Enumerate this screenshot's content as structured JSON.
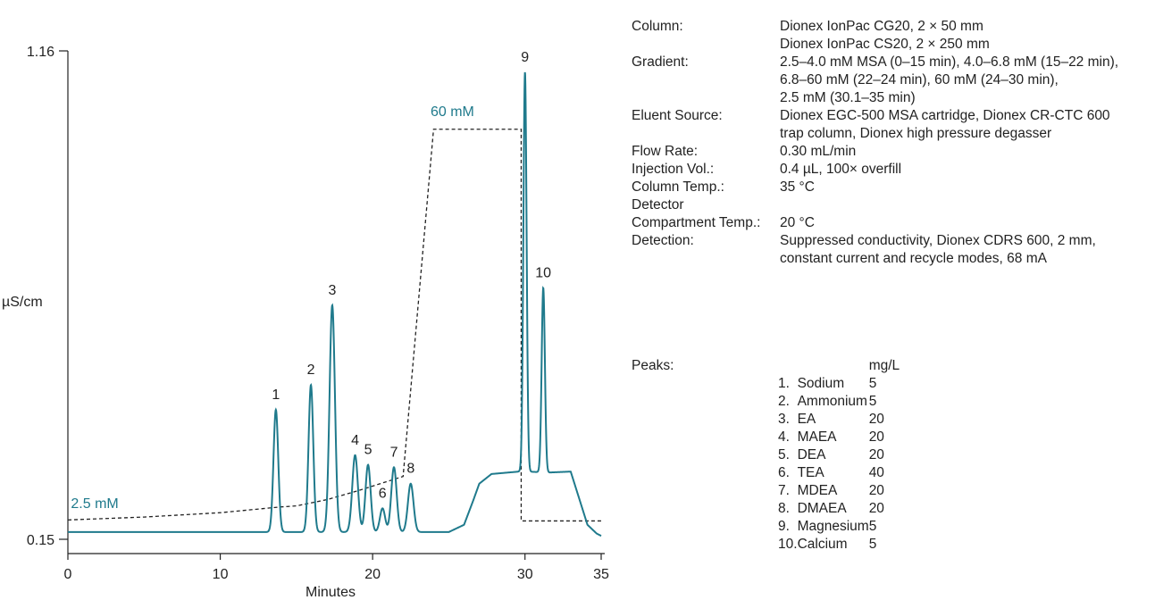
{
  "chart_data": {
    "type": "line",
    "xlabel": "Minutes",
    "ylabel": "µS/cm",
    "xlim": [
      0,
      35
    ],
    "ylim": [
      0.15,
      1.16
    ],
    "x_ticks": [
      "0",
      "10",
      "20",
      "30",
      "35"
    ],
    "y_ticks": [
      "0.15",
      "1.16"
    ],
    "grid": false,
    "color": "#1f7a8c",
    "series": [
      {
        "peaks": [
          {
            "label": "1",
            "x": 13.65,
            "y": 0.418,
            "width": 0.22
          },
          {
            "label": "2",
            "x": 15.95,
            "y": 0.469,
            "width": 0.22
          },
          {
            "label": "3",
            "x": 17.35,
            "y": 0.634,
            "width": 0.25
          },
          {
            "label": "4",
            "x": 18.85,
            "y": 0.324,
            "width": 0.26
          },
          {
            "label": "5",
            "x": 19.7,
            "y": 0.304,
            "width": 0.24
          },
          {
            "label": "6",
            "x": 20.65,
            "y": 0.214,
            "width": 0.24
          },
          {
            "label": "7",
            "x": 21.4,
            "y": 0.299,
            "width": 0.25
          },
          {
            "label": "8",
            "x": 22.5,
            "y": 0.265,
            "width": 0.26
          },
          {
            "label": "9",
            "x": 30.0,
            "y": 1.116,
            "width": 0.15
          },
          {
            "label": "10",
            "x": 31.2,
            "y": 0.67,
            "width": 0.15
          }
        ],
        "baseline_segments": [
          [
            0,
            0.165
          ],
          [
            13.0,
            0.165
          ]
        ],
        "hump": [
          [
            25.0,
            0.165
          ],
          [
            26.0,
            0.18
          ],
          [
            26.6,
            0.23
          ],
          [
            27.0,
            0.265
          ],
          [
            27.8,
            0.285
          ],
          [
            29.6,
            0.29
          ],
          [
            30.2,
            0.29
          ],
          [
            31.5,
            0.288
          ],
          [
            33.0,
            0.29
          ],
          [
            33.5,
            0.24
          ],
          [
            34.1,
            0.18
          ],
          [
            34.7,
            0.162
          ],
          [
            35.0,
            0.157
          ]
        ]
      },
      {
        "style": "dashed",
        "color": "#222222",
        "points": [
          [
            0,
            0.19
          ],
          [
            5,
            0.196
          ],
          [
            10,
            0.205
          ],
          [
            14,
            0.217
          ],
          [
            15,
            0.219
          ],
          [
            17,
            0.232
          ],
          [
            19,
            0.25
          ],
          [
            21.0,
            0.27
          ],
          [
            22.0,
            0.28
          ],
          [
            24.0,
            0.998
          ],
          [
            29.75,
            0.998
          ],
          [
            29.75,
            0.188
          ],
          [
            35.0,
            0.188
          ]
        ]
      }
    ],
    "annotations": [
      {
        "text": "2.5 mM",
        "x": 0.2,
        "y": 0.215
      },
      {
        "text": "60 mM",
        "x": 23.8,
        "y": 1.025
      }
    ]
  },
  "conditions": [
    {
      "key": "Column:",
      "value": "Dionex IonPac CG20, 2 × 50 mm\nDionex IonPac CS20, 2 × 250 mm"
    },
    {
      "key": "Gradient:",
      "value": "2.5–4.0 mM MSA (0–15 min), 4.0–6.8 mM (15–22 min),\n6.8–60 mM (22–24 min), 60 mM (24–30 min),\n2.5 mM (30.1–35 min)"
    },
    {
      "key": "Eluent Source:",
      "value": "Dionex EGC-500 MSA cartridge, Dionex CR-CTC 600\ntrap column, Dionex high pressure degasser"
    },
    {
      "key": "Flow Rate:",
      "value": "0.30 mL/min"
    },
    {
      "key": "Injection Vol.:",
      "value": "0.4 µL, 100× overfill"
    },
    {
      "key": "Column Temp.:",
      "value": "35 °C"
    },
    {
      "key": "Detector",
      "value": ""
    },
    {
      "key": "Compartment Temp.:",
      "value": "20 °C"
    },
    {
      "key": "Detection:",
      "value": "Suppressed conductivity, Dionex CDRS 600, 2 mm,\nconstant current and recycle modes, 68 mA"
    }
  ],
  "peaks_table": {
    "label": "Peaks:",
    "unit": "mg/L",
    "rows": [
      {
        "num": "1.",
        "name": "Sodium",
        "conc": "5"
      },
      {
        "num": "2.",
        "name": "Ammonium",
        "conc": "5"
      },
      {
        "num": "3.",
        "name": "EA",
        "conc": "20"
      },
      {
        "num": "4.",
        "name": "MAEA",
        "conc": "20"
      },
      {
        "num": "5.",
        "name": "DEA",
        "conc": "20"
      },
      {
        "num": "6.",
        "name": "TEA",
        "conc": "40"
      },
      {
        "num": "7.",
        "name": "MDEA",
        "conc": "20"
      },
      {
        "num": "8.",
        "name": "DMAEA",
        "conc": "20"
      },
      {
        "num": "9.",
        "name": "Magnesium",
        "conc": "5"
      },
      {
        "num": "10.",
        "name": "Calcium",
        "conc": "5"
      }
    ]
  }
}
